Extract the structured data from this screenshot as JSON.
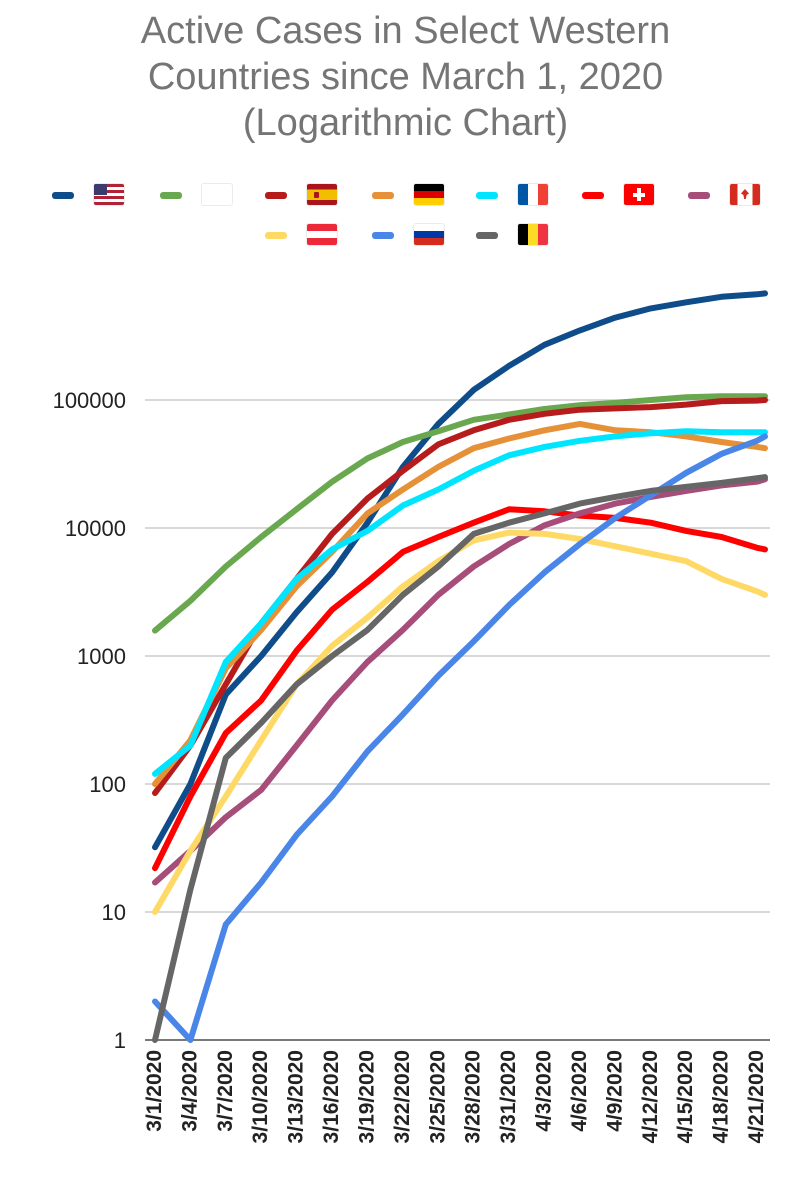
{
  "chart_data": {
    "type": "line",
    "title": "Active Cases in Select Western\nCountries since March 1, 2020\n(Logarithmic Chart)",
    "xlabel": "",
    "ylabel": "",
    "y_scale": "log",
    "ylim": [
      1,
      1000000
    ],
    "y_ticks": [
      "1",
      "10",
      "100",
      "1000",
      "10000",
      "100000"
    ],
    "grid": true,
    "legend_position": "top",
    "x_tick_labels": [
      "3/1/2020",
      "3/4/2020",
      "3/7/2020",
      "3/10/2020",
      "3/13/2020",
      "3/16/2020",
      "3/19/2020",
      "3/22/2020",
      "3/25/2020",
      "3/28/2020",
      "3/31/2020",
      "4/3/2020",
      "4/6/2020",
      "4/9/2020",
      "4/12/2020",
      "4/15/2020",
      "4/18/2020",
      "4/21/2020"
    ],
    "x": [
      "3/1/2020",
      "3/4/2020",
      "3/7/2020",
      "3/10/2020",
      "3/13/2020",
      "3/16/2020",
      "3/19/2020",
      "3/22/2020",
      "3/25/2020",
      "3/28/2020",
      "3/31/2020",
      "4/3/2020",
      "4/6/2020",
      "4/9/2020",
      "4/12/2020",
      "4/15/2020",
      "4/18/2020",
      "4/21/2020",
      "4/22/2020"
    ],
    "series": [
      {
        "flag": "us",
        "color": "#0f4c8a",
        "values": [
          32,
          100,
          500,
          1000,
          2200,
          4500,
          11000,
          30000,
          65000,
          120000,
          185000,
          270000,
          350000,
          440000,
          520000,
          580000,
          640000,
          670000,
          680000
        ]
      },
      {
        "flag": "it",
        "color": "#6aa84f",
        "values": [
          1580,
          2700,
          5000,
          8500,
          14000,
          23000,
          35000,
          47000,
          57000,
          70000,
          77000,
          85000,
          91000,
          95000,
          100000,
          105000,
          107000,
          107000,
          107000
        ]
      },
      {
        "flag": "es",
        "color": "#b71c1c",
        "values": [
          85,
          200,
          600,
          1800,
          4000,
          9000,
          17000,
          28000,
          45000,
          58000,
          70000,
          78000,
          84000,
          86000,
          88000,
          92000,
          98000,
          99000,
          100000
        ]
      },
      {
        "flag": "de",
        "color": "#e69138",
        "values": [
          100,
          220,
          800,
          1600,
          3500,
          6500,
          13000,
          20000,
          30000,
          42000,
          50000,
          58000,
          65000,
          58000,
          56000,
          52000,
          47000,
          43000,
          42000
        ]
      },
      {
        "flag": "fr",
        "color": "#00e5ff",
        "values": [
          120,
          200,
          900,
          1800,
          4000,
          6800,
          9500,
          15000,
          20000,
          28000,
          37000,
          43000,
          48000,
          52000,
          55000,
          57000,
          56000,
          56000,
          56000
        ]
      },
      {
        "flag": "ch",
        "color": "#ff0000",
        "values": [
          22,
          80,
          250,
          450,
          1100,
          2300,
          3800,
          6500,
          8500,
          11000,
          14000,
          13500,
          12500,
          12000,
          11000,
          9500,
          8500,
          7000,
          6800
        ]
      },
      {
        "flag": "ca",
        "color": "#a64d79",
        "values": [
          17,
          30,
          55,
          90,
          200,
          450,
          900,
          1600,
          3000,
          5000,
          7500,
          10500,
          13000,
          15500,
          17500,
          19500,
          21500,
          23000,
          24000
        ]
      },
      {
        "flag": "at",
        "color": "#ffd966",
        "values": [
          10,
          30,
          80,
          220,
          600,
          1200,
          2000,
          3500,
          5500,
          8000,
          9200,
          9000,
          8200,
          7200,
          6300,
          5500,
          4000,
          3200,
          3000
        ]
      },
      {
        "flag": "ru",
        "color": "#4a86e8",
        "values": [
          2,
          1,
          8,
          17,
          40,
          80,
          180,
          350,
          700,
          1300,
          2500,
          4500,
          7500,
          12000,
          18000,
          27000,
          38000,
          48000,
          52000
        ]
      },
      {
        "flag": "be",
        "color": "#666666",
        "values": [
          1,
          15,
          160,
          300,
          600,
          1000,
          1600,
          3000,
          5000,
          9000,
          11000,
          13000,
          15500,
          17500,
          19500,
          21000,
          22500,
          24500,
          25000
        ]
      }
    ]
  }
}
